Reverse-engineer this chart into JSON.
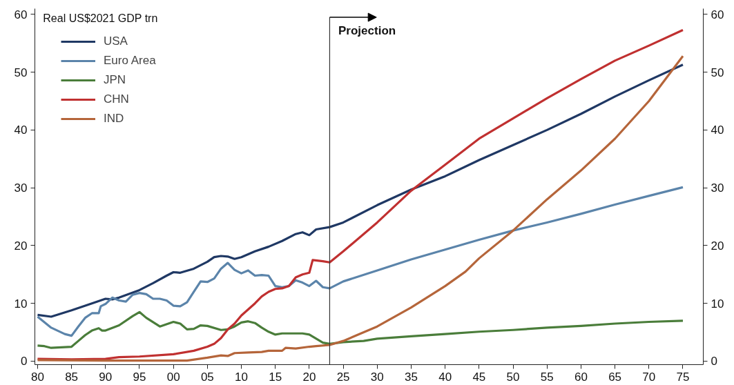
{
  "chart_data": {
    "type": "line",
    "ylabel": "Real US$2021 GDP trn",
    "xlim": [
      1979.6,
      2078
    ],
    "ylim": [
      -0.6,
      61
    ],
    "y2lim": [
      -0.6,
      61
    ],
    "xticks": [
      {
        "value": 1980,
        "label": "80"
      },
      {
        "value": 1985,
        "label": "85"
      },
      {
        "value": 1990,
        "label": "90"
      },
      {
        "value": 1995,
        "label": "95"
      },
      {
        "value": 2000,
        "label": "00"
      },
      {
        "value": 2005,
        "label": "05"
      },
      {
        "value": 2010,
        "label": "10"
      },
      {
        "value": 2015,
        "label": "15"
      },
      {
        "value": 2020,
        "label": "20"
      },
      {
        "value": 2025,
        "label": "25"
      },
      {
        "value": 2030,
        "label": "30"
      },
      {
        "value": 2035,
        "label": "35"
      },
      {
        "value": 2040,
        "label": "40"
      },
      {
        "value": 2045,
        "label": "45"
      },
      {
        "value": 2050,
        "label": "50"
      },
      {
        "value": 2055,
        "label": "55"
      },
      {
        "value": 2060,
        "label": "60"
      },
      {
        "value": 2065,
        "label": "65"
      },
      {
        "value": 2070,
        "label": "70"
      },
      {
        "value": 2075,
        "label": "75"
      }
    ],
    "yticks": [
      0,
      10,
      20,
      30,
      40,
      50,
      60
    ],
    "y2ticks": [
      0,
      10,
      20,
      30,
      40,
      50,
      60
    ],
    "grid": false,
    "legend": "top left",
    "marker": "none",
    "line_style": "solid",
    "ref_lines": [
      {
        "axis": "x",
        "value": 2023,
        "label": "Projection",
        "color": "#333333"
      }
    ],
    "series": [
      {
        "name": "USA",
        "color": "#1f3864",
        "x": [
          1980,
          1982,
          1985,
          1988,
          1990,
          1991,
          1992,
          1995,
          1997,
          1999,
          2000,
          2001,
          2003,
          2005,
          2006,
          2007,
          2008,
          2009,
          2010,
          2012,
          2014,
          2016,
          2018,
          2019,
          2020,
          2021,
          2023,
          2025,
          2030,
          2035,
          2040,
          2045,
          2050,
          2055,
          2060,
          2065,
          2070,
          2075
        ],
        "values": [
          8.0,
          7.7,
          8.8,
          10.0,
          10.8,
          10.7,
          11.0,
          12.3,
          13.5,
          14.8,
          15.4,
          15.3,
          16.0,
          17.2,
          18.0,
          18.2,
          18.1,
          17.7,
          18.0,
          19.0,
          19.8,
          20.8,
          22.0,
          22.3,
          21.8,
          22.8,
          23.2,
          24.0,
          27.0,
          29.7,
          32.0,
          34.8,
          37.4,
          40.0,
          42.8,
          45.8,
          48.6,
          51.3
        ]
      },
      {
        "name": "Euro Area",
        "color": "#5b84aa",
        "x": [
          1980,
          1982,
          1984,
          1985,
          1986,
          1987,
          1988,
          1989,
          1989.3,
          1990,
          1991,
          1992,
          1993,
          1994,
          1995,
          1996,
          1997,
          1998,
          1999,
          2000,
          2001,
          2002,
          2003,
          2004,
          2005,
          2006,
          2007,
          2008,
          2009,
          2010,
          2011,
          2012,
          2013,
          2014,
          2015,
          2016,
          2017,
          2018,
          2019,
          2020,
          2021,
          2022,
          2023,
          2025,
          2030,
          2035,
          2040,
          2045,
          2050,
          2055,
          2060,
          2065,
          2070,
          2075
        ],
        "values": [
          7.7,
          5.8,
          4.7,
          4.4,
          6.0,
          7.5,
          8.3,
          8.3,
          9.5,
          9.9,
          11.0,
          10.5,
          10.3,
          11.5,
          11.8,
          11.6,
          10.8,
          10.8,
          10.5,
          9.6,
          9.5,
          10.2,
          12.0,
          13.8,
          13.7,
          14.3,
          16.0,
          17.0,
          15.8,
          15.2,
          15.7,
          14.8,
          14.9,
          14.8,
          13.0,
          12.8,
          13.0,
          14.0,
          13.6,
          13.0,
          13.9,
          12.8,
          12.6,
          13.8,
          15.7,
          17.6,
          19.3,
          21.0,
          22.6,
          24.0,
          25.5,
          27.1,
          28.6,
          30.1
        ]
      },
      {
        "name": "JPN",
        "color": "#4a7d3a",
        "x": [
          1980,
          1981,
          1982,
          1985,
          1986,
          1987,
          1988,
          1989,
          1989.5,
          1990,
          1992,
          1994,
          1995,
          1996,
          1998,
          2000,
          2001,
          2002,
          2003,
          2004,
          2005,
          2007,
          2008,
          2009,
          2010,
          2011,
          2012,
          2013,
          2014,
          2015,
          2016,
          2017,
          2019,
          2020,
          2022,
          2023,
          2025,
          2028,
          2030,
          2035,
          2040,
          2045,
          2050,
          2055,
          2060,
          2065,
          2070,
          2075
        ],
        "values": [
          2.7,
          2.6,
          2.3,
          2.5,
          3.5,
          4.5,
          5.3,
          5.7,
          5.3,
          5.3,
          6.2,
          7.8,
          8.5,
          7.5,
          6.0,
          6.8,
          6.5,
          5.5,
          5.6,
          6.2,
          6.1,
          5.4,
          5.5,
          6.0,
          6.7,
          6.9,
          6.6,
          5.8,
          5.1,
          4.6,
          4.8,
          4.8,
          4.8,
          4.6,
          3.2,
          3.0,
          3.3,
          3.5,
          3.9,
          4.3,
          4.7,
          5.1,
          5.4,
          5.8,
          6.1,
          6.5,
          6.8,
          7.0
        ]
      },
      {
        "name": "CHN",
        "color": "#c03030",
        "x": [
          1980,
          1985,
          1990,
          1992,
          1995,
          2000,
          2003,
          2005,
          2006,
          2007,
          2008,
          2009,
          2010,
          2012,
          2013,
          2014,
          2015,
          2016,
          2017,
          2018,
          2019,
          2020,
          2020.5,
          2022,
          2023,
          2025,
          2030,
          2035,
          2037,
          2040,
          2045,
          2050,
          2055,
          2060,
          2065,
          2070,
          2075
        ],
        "values": [
          0.4,
          0.3,
          0.4,
          0.7,
          0.8,
          1.2,
          1.8,
          2.5,
          3.0,
          4.0,
          5.5,
          6.5,
          7.9,
          10.0,
          11.2,
          12.0,
          12.5,
          12.6,
          13.0,
          14.5,
          15.0,
          15.3,
          17.5,
          17.3,
          17.1,
          19.0,
          24.0,
          29.5,
          31.3,
          34.0,
          38.5,
          42.0,
          45.5,
          48.8,
          52.0,
          54.6,
          57.3
        ]
      },
      {
        "name": "IND",
        "color": "#b5653a",
        "x": [
          1980,
          1990,
          2000,
          2002,
          2005,
          2007,
          2008,
          2009,
          2011,
          2013,
          2014,
          2016,
          2016.5,
          2018,
          2020,
          2021,
          2023,
          2025,
          2027,
          2030,
          2035,
          2040,
          2043,
          2045,
          2050,
          2055,
          2060,
          2065,
          2070,
          2075
        ],
        "values": [
          0.2,
          0.1,
          0.1,
          0.1,
          0.6,
          1.0,
          0.9,
          1.4,
          1.5,
          1.6,
          1.8,
          1.8,
          2.3,
          2.2,
          2.5,
          2.6,
          2.8,
          3.5,
          4.5,
          6.0,
          9.3,
          13.0,
          15.5,
          17.8,
          22.6,
          28.0,
          33.0,
          38.5,
          45.0,
          52.8
        ]
      }
    ]
  }
}
